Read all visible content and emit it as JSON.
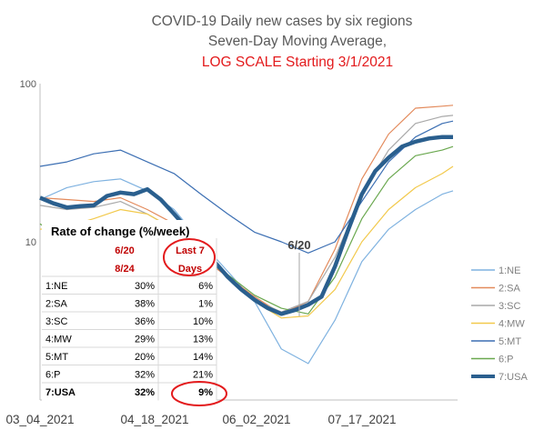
{
  "chart_data": {
    "type": "line",
    "title": "COVID-19 Daily new cases by six regions",
    "subtitle": "Seven-Day Moving Average,",
    "subtitle2": "LOG SCALE Starting 3/1/2021",
    "yscale": "log",
    "ylim": [
      1,
      100
    ],
    "y_ticks": [
      "100",
      "10"
    ],
    "x_ticks": [
      "03_04_2021",
      "04_18_2021",
      "06_02_2021",
      "07_17_2021"
    ],
    "x_range_days": [
      0,
      154
    ],
    "grid": false,
    "legend": "right",
    "annotation": "6/20",
    "colors": {
      "1:NE": "#7fb2e0",
      "2:SA": "#e38a5b",
      "3:SC": "#a9a9a9",
      "4:MW": "#f2c94c",
      "5:MT": "#3c6fb3",
      "6:P": "#6aa84f",
      "7:USA": "#2a5f8e"
    },
    "series": [
      {
        "name": "1:NE",
        "x": [
          0,
          10,
          20,
          30,
          40,
          50,
          60,
          70,
          80,
          90,
          100,
          110,
          120,
          130,
          140,
          150,
          154
        ],
        "values": [
          18.5,
          22,
          24,
          25,
          21,
          16,
          10,
          6.5,
          4.2,
          2.1,
          1.7,
          3.2,
          7.5,
          12,
          16,
          20,
          21
        ]
      },
      {
        "name": "2:SA",
        "x": [
          0,
          10,
          20,
          30,
          40,
          50,
          60,
          70,
          80,
          90,
          100,
          110,
          120,
          130,
          140,
          150,
          154
        ],
        "values": [
          19,
          18.5,
          18,
          19,
          16,
          13,
          8,
          6,
          4.5,
          3.5,
          4.2,
          9,
          25,
          48,
          70,
          72,
          73
        ]
      },
      {
        "name": "3:SC",
        "x": [
          0,
          10,
          20,
          30,
          40,
          50,
          60,
          70,
          80,
          90,
          100,
          110,
          120,
          130,
          140,
          150,
          154
        ],
        "values": [
          17,
          16,
          16.5,
          18,
          15,
          12,
          8.5,
          6,
          4.3,
          3.6,
          4.2,
          8,
          20,
          38,
          56,
          62,
          63
        ]
      },
      {
        "name": "4:MW",
        "x": [
          0,
          10,
          20,
          30,
          40,
          50,
          60,
          70,
          80,
          90,
          100,
          110,
          120,
          130,
          140,
          150,
          154
        ],
        "values": [
          12,
          12.5,
          14,
          16,
          15,
          12,
          8.5,
          6,
          4.2,
          3.3,
          3.4,
          5,
          10,
          16,
          22,
          27,
          30
        ]
      },
      {
        "name": "5:MT",
        "x": [
          0,
          10,
          20,
          30,
          40,
          50,
          60,
          70,
          80,
          90,
          100,
          110,
          120,
          130,
          140,
          150,
          154
        ],
        "values": [
          30,
          32,
          36,
          38,
          32,
          27,
          20,
          15,
          11.5,
          10,
          8.5,
          10,
          18,
          32,
          46,
          56,
          58
        ]
      },
      {
        "name": "6:P",
        "x": [
          0,
          10,
          20,
          30,
          40,
          50,
          60,
          70,
          80,
          90,
          100,
          110,
          120,
          130,
          140,
          150,
          154
        ],
        "values": [
          13,
          10,
          9.5,
          10,
          11,
          10,
          8,
          6.2,
          4.6,
          3.8,
          3.5,
          6,
          14,
          25,
          35,
          38,
          40
        ]
      },
      {
        "name": "7:USA",
        "x": [
          0,
          5,
          10,
          15,
          20,
          25,
          30,
          35,
          40,
          45,
          50,
          55,
          60,
          65,
          70,
          75,
          80,
          85,
          90,
          95,
          100,
          105,
          110,
          115,
          120,
          125,
          130,
          135,
          140,
          145,
          150,
          154
        ],
        "values": [
          19,
          17.5,
          16.5,
          16.8,
          17,
          19.5,
          20.5,
          20,
          21.5,
          18.5,
          15,
          12,
          9.5,
          7.5,
          6,
          5,
          4.3,
          3.8,
          3.5,
          3.7,
          4,
          4.5,
          7,
          12,
          20,
          28,
          34,
          40,
          43,
          45,
          46,
          46
        ]
      }
    ]
  },
  "table": {
    "title": "Rate of change (%/week)",
    "col1_head_line1": "6/20",
    "col1_head_line2": "8/24",
    "col2_head_line1": "Last 7",
    "col2_head_line2": "Days",
    "rows": [
      {
        "label": "1:NE",
        "a": "30%",
        "b": "6%"
      },
      {
        "label": "2:SA",
        "a": "38%",
        "b": "1%"
      },
      {
        "label": "3:SC",
        "a": "36%",
        "b": "10%"
      },
      {
        "label": "4:MW",
        "a": "29%",
        "b": "13%"
      },
      {
        "label": "5:MT",
        "a": "20%",
        "b": "14%"
      },
      {
        "label": "6:P",
        "a": "32%",
        "b": "21%"
      },
      {
        "label": "7:USA",
        "a": "32%",
        "b": "9%"
      }
    ]
  }
}
